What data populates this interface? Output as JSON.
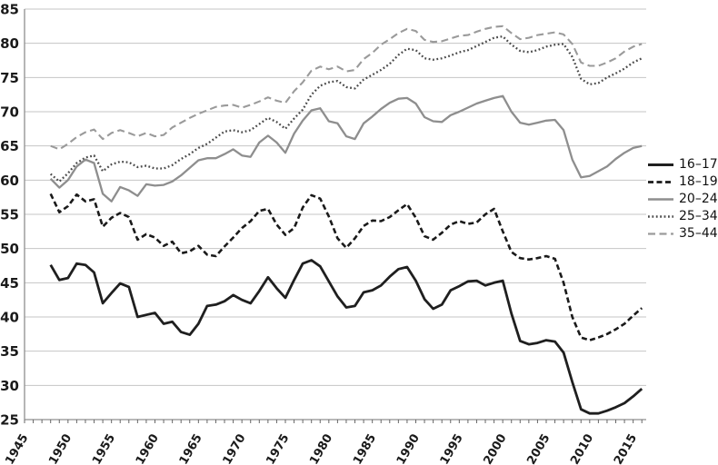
{
  "chart_data": {
    "type": "line",
    "title": "",
    "xlabel": "",
    "ylabel": "",
    "grid": "horizontal",
    "legend_position": "right",
    "colors": {
      "background": "#ffffff",
      "gridline": "#c4c4c4",
      "axis": "#8f8f8f",
      "tick": "#666666",
      "tick_label": "#1a1a1a"
    },
    "y_axis": {
      "min": 25,
      "max": 85,
      "step": 5
    },
    "x_axis": {
      "domain": [
        1945,
        2016.5
      ],
      "tick_start": 1945,
      "tick_end": 2015,
      "tick_step": 5,
      "minor_step": 1
    },
    "years": [
      1948,
      1949,
      1950,
      1951,
      1952,
      1953,
      1954,
      1955,
      1956,
      1957,
      1958,
      1959,
      1960,
      1961,
      1962,
      1963,
      1964,
      1965,
      1966,
      1967,
      1968,
      1969,
      1970,
      1971,
      1972,
      1973,
      1974,
      1975,
      1976,
      1977,
      1978,
      1979,
      1980,
      1981,
      1982,
      1983,
      1984,
      1985,
      1986,
      1987,
      1988,
      1989,
      1990,
      1991,
      1992,
      1993,
      1994,
      1995,
      1996,
      1997,
      1998,
      1999,
      2000,
      2001,
      2002,
      2003,
      2004,
      2005,
      2006,
      2007,
      2008,
      2009,
      2010,
      2011,
      2012,
      2013,
      2014,
      2015,
      2016
    ],
    "series": [
      {
        "name": "16–17",
        "color": "#1f1f1f",
        "style": "solid",
        "dash": "",
        "width": 2.8,
        "values": [
          47.6,
          45.4,
          45.7,
          47.8,
          47.6,
          46.5,
          42.0,
          43.5,
          44.9,
          44.4,
          40.0,
          40.3,
          40.6,
          39.0,
          39.3,
          37.8,
          37.4,
          39.0,
          41.6,
          41.8,
          42.3,
          43.2,
          42.5,
          42.0,
          43.8,
          45.8,
          44.2,
          42.8,
          45.4,
          47.8,
          48.3,
          47.4,
          45.2,
          43.0,
          41.4,
          41.6,
          43.6,
          43.9,
          44.6,
          45.9,
          47.0,
          47.3,
          45.3,
          42.6,
          41.2,
          41.8,
          43.9,
          44.5,
          45.2,
          45.3,
          44.6,
          45.0,
          45.3,
          40.5,
          36.5,
          36.0,
          36.2,
          36.6,
          36.4,
          34.8,
          30.5,
          26.5,
          25.9,
          25.9,
          26.3,
          26.8,
          27.4,
          28.4,
          29.5
        ]
      },
      {
        "name": "18–19",
        "color": "#1a1a1a",
        "style": "dashed",
        "dash": "6 3.5",
        "width": 2.6,
        "values": [
          58.0,
          55.3,
          56.2,
          57.9,
          56.9,
          57.2,
          53.2,
          54.5,
          55.2,
          54.6,
          51.3,
          52.1,
          51.6,
          50.4,
          51.0,
          49.3,
          49.6,
          50.4,
          49.1,
          48.9,
          50.3,
          51.6,
          53.0,
          54.0,
          55.5,
          55.8,
          53.5,
          52.0,
          53.0,
          56.0,
          57.8,
          57.3,
          54.7,
          51.5,
          50.1,
          51.5,
          53.3,
          54.1,
          54.0,
          54.6,
          55.6,
          56.5,
          54.5,
          51.8,
          51.3,
          52.3,
          53.5,
          54.0,
          53.6,
          53.8,
          55.0,
          55.8,
          52.5,
          49.5,
          48.6,
          48.4,
          48.6,
          48.9,
          48.5,
          45.0,
          40.0,
          37.0,
          36.6,
          37.0,
          37.5,
          38.2,
          39.0,
          40.2,
          41.3
        ]
      },
      {
        "name": "20–24",
        "color": "#8e8e8e",
        "style": "solid",
        "dash": "",
        "width": 2.3,
        "values": [
          60.2,
          58.9,
          60.0,
          62.0,
          63.0,
          62.5,
          58.0,
          56.9,
          59.0,
          58.5,
          57.7,
          59.4,
          59.2,
          59.3,
          59.8,
          60.7,
          61.8,
          62.9,
          63.2,
          63.2,
          63.8,
          64.5,
          63.6,
          63.4,
          65.5,
          66.5,
          65.5,
          64.0,
          66.8,
          68.7,
          70.2,
          70.5,
          68.6,
          68.3,
          66.4,
          66.0,
          68.3,
          69.3,
          70.4,
          71.3,
          71.9,
          72.0,
          71.2,
          69.2,
          68.6,
          68.5,
          69.5,
          70.0,
          70.6,
          71.2,
          71.6,
          72.0,
          72.3,
          70.0,
          68.4,
          68.1,
          68.4,
          68.7,
          68.8,
          67.3,
          63.0,
          60.4,
          60.6,
          61.3,
          62.0,
          63.1,
          64.0,
          64.7,
          65.0
        ]
      },
      {
        "name": "25–34",
        "color": "#4a4a4a",
        "style": "dotted",
        "dash": "1.8 2.6",
        "width": 2.3,
        "values": [
          60.9,
          59.8,
          61.0,
          62.5,
          63.3,
          63.6,
          61.3,
          62.3,
          62.7,
          62.6,
          61.9,
          62.1,
          61.7,
          61.7,
          62.2,
          63.1,
          63.8,
          64.7,
          65.3,
          66.2,
          67.1,
          67.3,
          67.0,
          67.3,
          68.2,
          69.1,
          68.5,
          67.5,
          69.0,
          70.3,
          72.5,
          73.8,
          74.3,
          74.5,
          73.6,
          73.4,
          74.7,
          75.4,
          76.1,
          77.0,
          78.3,
          79.2,
          79.0,
          77.8,
          77.6,
          77.8,
          78.2,
          78.7,
          79.0,
          79.6,
          80.2,
          80.8,
          81.0,
          79.8,
          78.9,
          78.7,
          79.0,
          79.5,
          79.8,
          79.9,
          78.0,
          74.8,
          74.0,
          74.2,
          75.0,
          75.6,
          76.3,
          77.2,
          77.8
        ]
      },
      {
        "name": "35–44",
        "color": "#9a9a9a",
        "style": "dashed",
        "dash": "8 4.5",
        "width": 2.1,
        "values": [
          65.0,
          64.5,
          65.3,
          66.3,
          67.0,
          67.4,
          66.0,
          66.9,
          67.3,
          66.9,
          66.4,
          66.9,
          66.4,
          66.6,
          67.7,
          68.4,
          69.1,
          69.7,
          70.2,
          70.7,
          70.9,
          71.0,
          70.6,
          71.0,
          71.5,
          72.1,
          71.6,
          71.3,
          73.0,
          74.3,
          76.0,
          76.6,
          76.2,
          76.6,
          75.9,
          76.1,
          77.7,
          78.6,
          79.8,
          80.6,
          81.5,
          82.1,
          81.8,
          80.5,
          80.2,
          80.3,
          80.7,
          81.1,
          81.2,
          81.7,
          82.1,
          82.4,
          82.5,
          81.5,
          80.6,
          80.8,
          81.2,
          81.4,
          81.6,
          81.3,
          79.9,
          77.2,
          76.7,
          76.7,
          77.2,
          77.8,
          78.8,
          79.5,
          79.9
        ]
      }
    ],
    "y_tick_labels": [
      "25",
      "30",
      "35",
      "40",
      "45",
      "50",
      "55",
      "60",
      "65",
      "70",
      "75",
      "80",
      "85"
    ],
    "x_tick_labels": [
      "1945",
      "1950",
      "1955",
      "1960",
      "1965",
      "1970",
      "1975",
      "1980",
      "1985",
      "1990",
      "1995",
      "2000",
      "2005",
      "2010",
      "2015"
    ]
  }
}
